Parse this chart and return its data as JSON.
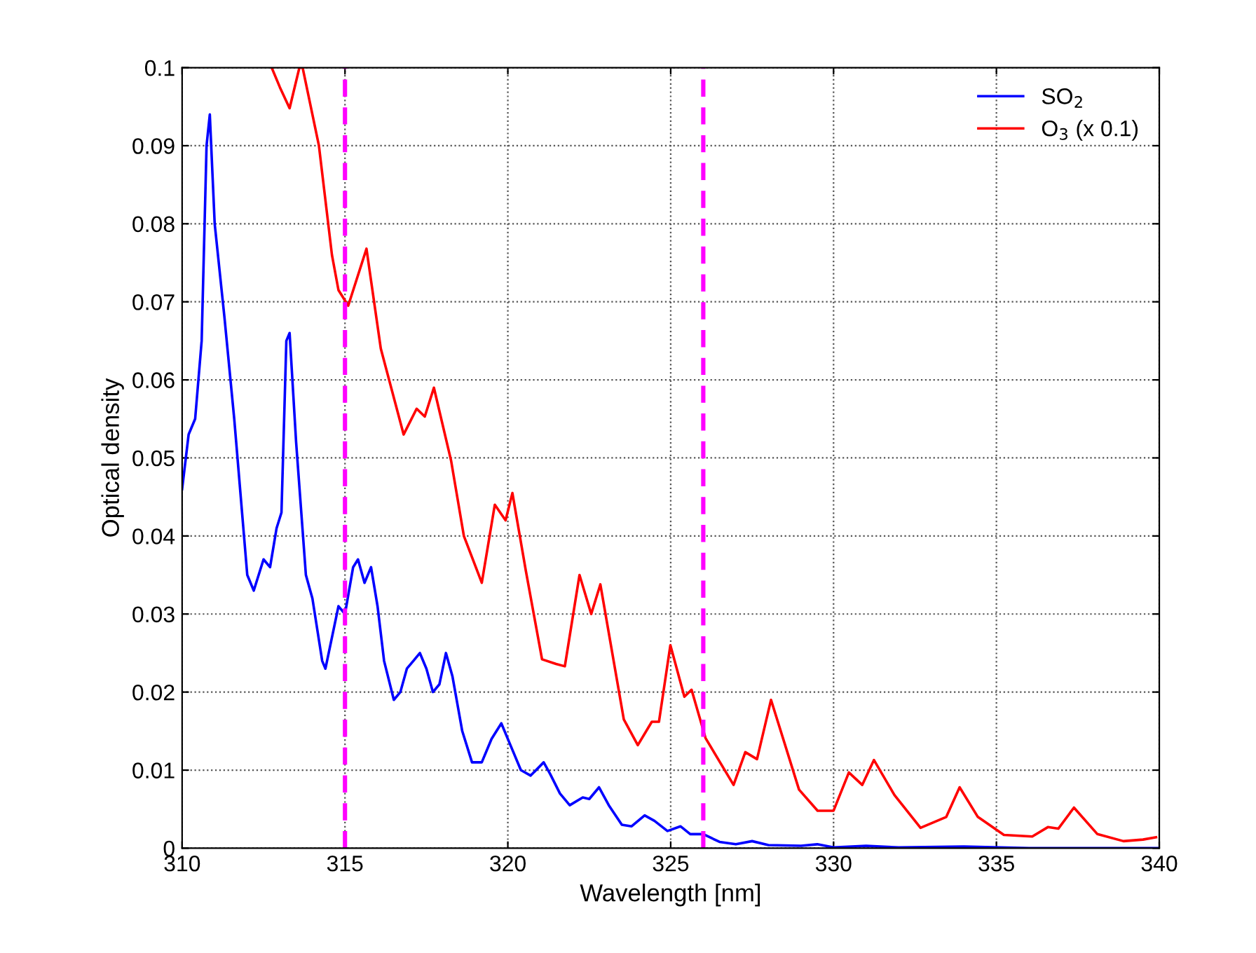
{
  "chart_data": {
    "type": "line",
    "xlabel": "Wavelength [nm]",
    "ylabel": "Optical density",
    "xlim": [
      310,
      340
    ],
    "xticks": [
      310,
      315,
      320,
      325,
      330,
      335,
      340
    ],
    "ylim": [
      0,
      0.1
    ],
    "yticks": [
      0,
      0.01,
      0.02,
      0.03,
      0.04,
      0.05,
      0.06,
      0.07,
      0.08,
      0.09,
      0.1
    ],
    "grid": true,
    "legend": "top right",
    "line_style": "solid",
    "marker": "none",
    "series": [
      {
        "name": "SO$_{2}$",
        "color": "#0000ff",
        "x": [
          310,
          310.2,
          310.4,
          310.6,
          310.75,
          310.85,
          311.0,
          311.3,
          311.6,
          311.8,
          312.0,
          312.2,
          312.5,
          312.7,
          312.9,
          313.05,
          313.2,
          313.3,
          313.5,
          313.8,
          314.0,
          314.3,
          314.4,
          314.6,
          314.8,
          315.0,
          315.25,
          315.4,
          315.6,
          315.8,
          316.0,
          316.2,
          316.5,
          316.7,
          316.9,
          317.1,
          317.3,
          317.5,
          317.7,
          317.9,
          318.1,
          318.3,
          318.6,
          318.9,
          319.2,
          319.5,
          319.8,
          320.1,
          320.4,
          320.7,
          321.1,
          321.3,
          321.6,
          321.9,
          322.3,
          322.5,
          322.8,
          323.1,
          323.5,
          323.8,
          324.2,
          324.5,
          324.9,
          325.3,
          325.6,
          326.0,
          326.5,
          327.0,
          327.5,
          328.0,
          329.0,
          329.5,
          330.0,
          331.0,
          332.0,
          334.0,
          336.0,
          340.0
        ],
        "values": [
          0.046,
          0.053,
          0.055,
          0.065,
          0.09,
          0.094,
          0.08,
          0.068,
          0.055,
          0.045,
          0.035,
          0.033,
          0.037,
          0.036,
          0.041,
          0.043,
          0.065,
          0.066,
          0.052,
          0.035,
          0.032,
          0.024,
          0.023,
          0.027,
          0.031,
          0.03,
          0.036,
          0.037,
          0.034,
          0.036,
          0.031,
          0.024,
          0.019,
          0.02,
          0.023,
          0.024,
          0.025,
          0.023,
          0.02,
          0.021,
          0.025,
          0.022,
          0.015,
          0.011,
          0.011,
          0.014,
          0.016,
          0.013,
          0.01,
          0.0093,
          0.011,
          0.0095,
          0.007,
          0.0055,
          0.0065,
          0.0063,
          0.0078,
          0.0055,
          0.003,
          0.0028,
          0.0042,
          0.0035,
          0.0022,
          0.0028,
          0.0018,
          0.0018,
          0.0008,
          0.0005,
          0.0009,
          0.0004,
          0.0003,
          0.0005,
          0.0001,
          0.0003,
          0.0001,
          0.0002,
          0,
          0
        ]
      },
      {
        "name": "O$_{3}$ (x 0.1)",
        "color": "#ff0000",
        "x": [
          312.75,
          313.0,
          313.3,
          313.6,
          313.7,
          314.2,
          314.6,
          314.8,
          315.1,
          315.66,
          316.1,
          316.8,
          317.2,
          317.45,
          317.73,
          318.26,
          318.65,
          319.2,
          319.6,
          319.93,
          320.14,
          320.55,
          321.05,
          321.48,
          321.75,
          322.2,
          322.56,
          322.84,
          323.56,
          323.99,
          324.42,
          324.64,
          324.99,
          325.42,
          325.64,
          326.07,
          326.93,
          327.29,
          327.65,
          328.08,
          328.94,
          329.51,
          330.0,
          330.47,
          330.88,
          331.24,
          331.87,
          332.67,
          333.46,
          333.87,
          334.43,
          335.23,
          336.1,
          336.58,
          336.9,
          337.38,
          338.1,
          338.9,
          339.5,
          339.9
        ],
        "values": [
          0.1,
          0.0975,
          0.0948,
          0.1,
          0.1,
          0.09,
          0.076,
          0.0715,
          0.0695,
          0.0768,
          0.064,
          0.053,
          0.0563,
          0.0553,
          0.059,
          0.0496,
          0.04,
          0.034,
          0.044,
          0.042,
          0.0455,
          0.0356,
          0.0242,
          0.0236,
          0.0233,
          0.035,
          0.03,
          0.0338,
          0.0165,
          0.0132,
          0.0162,
          0.0162,
          0.026,
          0.0194,
          0.0203,
          0.0141,
          0.0081,
          0.0123,
          0.0114,
          0.019,
          0.0075,
          0.0048,
          0.0048,
          0.0097,
          0.0081,
          0.0113,
          0.0068,
          0.0026,
          0.004,
          0.0078,
          0.004,
          0.0017,
          0.0015,
          0.0027,
          0.0025,
          0.0052,
          0.0018,
          0.0009,
          0.0011,
          0.0014
        ]
      }
    ],
    "ref_lines": [
      {
        "axis": "x",
        "value": 315,
        "color": "#ff00ff",
        "line_style": "dashed"
      },
      {
        "axis": "x",
        "value": 326,
        "color": "#ff00ff",
        "line_style": "dashed"
      }
    ]
  }
}
